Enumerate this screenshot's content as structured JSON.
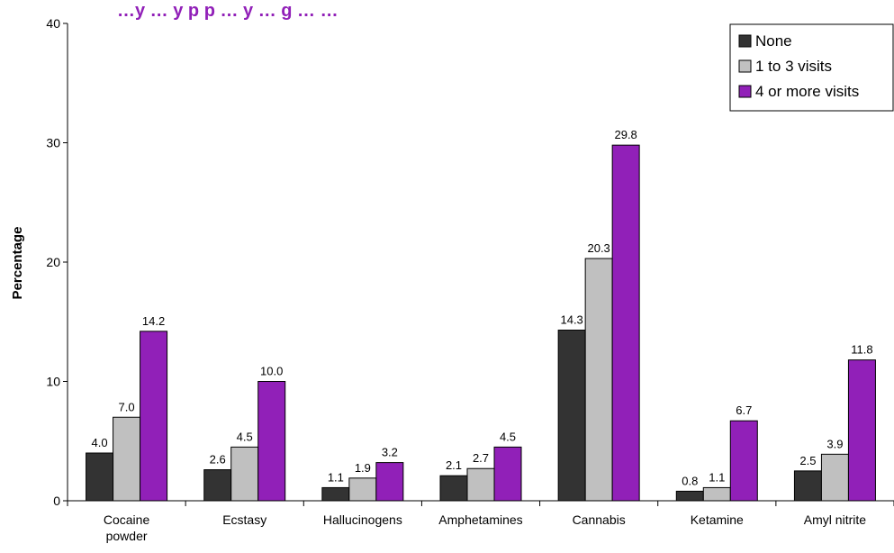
{
  "chart_data": {
    "type": "bar",
    "title": "…y … y  p  p … y … g … …",
    "ylabel": "Percentage",
    "xlabel": "",
    "ylim": [
      0,
      40
    ],
    "yticks": [
      0,
      10,
      20,
      30,
      40
    ],
    "grid": false,
    "legend_position": "top-right",
    "categories": [
      [
        "Cocaine",
        "powder"
      ],
      [
        "Ecstasy"
      ],
      [
        "Hallucinogens"
      ],
      [
        "Amphetamines"
      ],
      [
        "Cannabis"
      ],
      [
        "Ketamine"
      ],
      [
        "Amyl nitrite"
      ]
    ],
    "series": [
      {
        "name": "None",
        "color": "#333333",
        "values": [
          4.0,
          2.6,
          1.1,
          2.1,
          14.3,
          0.8,
          2.5
        ],
        "labels": [
          "4.0",
          "2.6",
          "1.1",
          "2.1",
          "14.3",
          "0.8",
          "2.5"
        ]
      },
      {
        "name": "1 to 3 visits",
        "color": "#c0c0c0",
        "values": [
          7.0,
          4.5,
          1.9,
          2.7,
          20.3,
          1.1,
          3.9
        ],
        "labels": [
          "7.0",
          "4.5",
          "1.9",
          "2.7",
          "20.3",
          "1.1",
          "3.9"
        ]
      },
      {
        "name": "4 or more visits",
        "color": "#9120b8",
        "values": [
          14.2,
          10.0,
          3.2,
          4.5,
          29.8,
          6.7,
          11.8
        ],
        "labels": [
          "14.2",
          "10.0",
          "3.2",
          "4.5",
          "29.8",
          "6.7",
          "11.8"
        ]
      }
    ],
    "title_color": "#9120b8"
  }
}
